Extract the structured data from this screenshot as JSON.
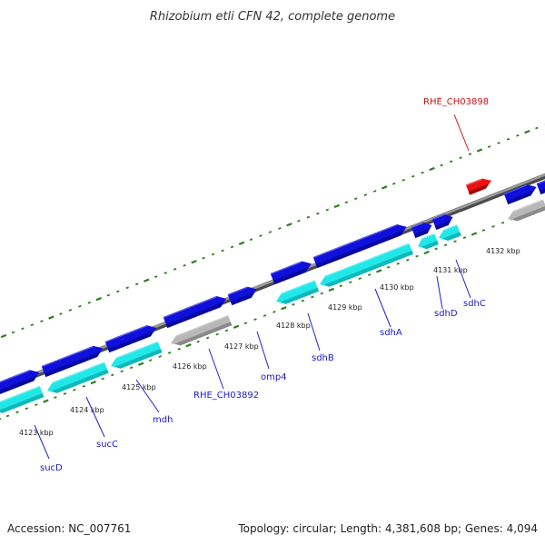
{
  "map": {
    "title": "Rhizobium etli CFN 42, complete genome",
    "accession": "Accession: NC_007761",
    "summary": "Topology: circular; Length: 4,381,608 bp; Genes: 4,094"
  },
  "colors": {
    "background": "#ffffff",
    "backbone": "#808080",
    "tick": "#2e7d1e",
    "forward_gene": "#1010dd",
    "forward_gene_shade": "#0808a0",
    "reverse_gene": "#20e8e8",
    "reverse_gene_shade": "#10b8b8",
    "other_gene": "#b8b8b8",
    "highlight_gene": "#ee1111",
    "label": "#1a1acc",
    "highlight_label": "#cc1111"
  },
  "kbp_ticks": [
    "4123 kbp",
    "4124 kbp",
    "4125 kbp",
    "4126 kbp",
    "4127 kbp",
    "4128 kbp",
    "4129 kbp",
    "4130 kbp",
    "4131 kbp",
    "4132 kbp"
  ],
  "gene_labels": {
    "rhe_ch03898": "RHE_CH03898",
    "sucD": "sucD",
    "sucC": "sucC",
    "mdh": "mdh",
    "rhe_ch03892": "RHE_CH03892",
    "omp4": "omp4",
    "sdhB": "sdhB",
    "sdhA": "sdhA",
    "sdhD": "sdhD",
    "sdhC": "sdhC"
  }
}
